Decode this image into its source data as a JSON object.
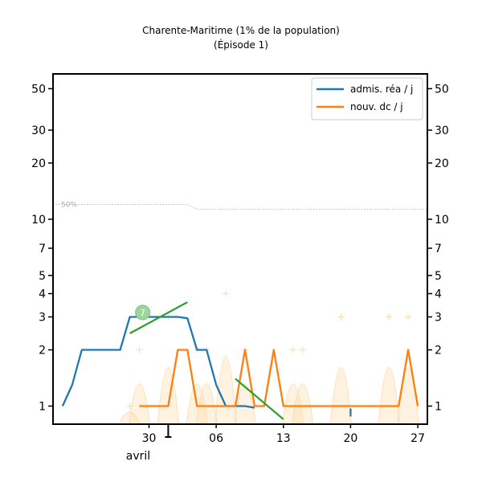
{
  "chart_data": {
    "type": "line",
    "title": "Charente-Maritime (1% de la population)",
    "subtitle": "(Épisode 1)",
    "y_scale": "log",
    "ylim": [
      0.8,
      60
    ],
    "xlim": [
      "2020-03-20",
      "2020-04-28"
    ],
    "y_ticks": [
      1,
      2,
      3,
      4,
      5,
      7,
      10,
      20,
      30,
      50
    ],
    "y_tick_labels": [
      "1",
      "2",
      "3",
      "4",
      "5",
      "7",
      "10",
      "20",
      "30",
      "50"
    ],
    "x_ticks": [
      {
        "date": "2020-03-30",
        "label": "30"
      },
      {
        "date": "2020-04-06",
        "label": "06"
      },
      {
        "date": "2020-04-13",
        "label": "13"
      },
      {
        "date": "2020-04-20",
        "label": "20"
      },
      {
        "date": "2020-04-27",
        "label": "27"
      }
    ],
    "x_month_label": "avril",
    "legend": {
      "position": "top-right",
      "entries": [
        "admis. réa / j",
        "nouv. dc / j"
      ]
    },
    "colors": {
      "rea": "#1f77b4",
      "dc": "#ff7f0e",
      "trend": "#2ca02c",
      "threshold": "#bbbbbb",
      "raw": "#ffd9a8"
    },
    "series": [
      {
        "name": "admis. réa / j",
        "color": "#1f77b4",
        "points": [
          [
            "2020-03-21",
            1.0
          ],
          [
            "2020-03-22",
            1.3
          ],
          [
            "2020-03-23",
            2.0
          ],
          [
            "2020-03-24",
            2.0
          ],
          [
            "2020-03-25",
            2.0
          ],
          [
            "2020-03-26",
            2.0
          ],
          [
            "2020-03-27",
            2.0
          ],
          [
            "2020-03-28",
            3.0
          ],
          [
            "2020-03-29",
            3.0
          ],
          [
            "2020-03-30",
            3.0
          ],
          [
            "2020-03-31",
            3.0
          ],
          [
            "2020-04-01",
            3.0
          ],
          [
            "2020-04-02",
            3.0
          ],
          [
            "2020-04-03",
            2.95
          ],
          [
            "2020-04-04",
            2.0
          ],
          [
            "2020-04-05",
            2.0
          ],
          [
            "2020-04-06",
            1.3
          ],
          [
            "2020-04-07",
            1.0
          ],
          [
            "2020-04-08",
            1.0
          ],
          [
            "2020-04-09",
            1.0
          ],
          [
            "2020-04-10",
            0.98
          ]
        ],
        "extra_segments": [
          [
            [
              "2020-04-20",
              0.97
            ],
            [
              "2020-04-20",
              0.88
            ]
          ]
        ]
      },
      {
        "name": "nouv. dc / j",
        "color": "#ff7f0e",
        "points": [
          [
            "2020-03-29",
            1.0
          ],
          [
            "2020-03-30",
            1.0
          ],
          [
            "2020-03-31",
            1.0
          ],
          [
            "2020-04-01",
            1.0
          ],
          [
            "2020-04-02",
            2.0
          ],
          [
            "2020-04-03",
            2.0
          ],
          [
            "2020-04-04",
            1.0
          ],
          [
            "2020-04-05",
            1.0
          ],
          [
            "2020-04-06",
            1.0
          ],
          [
            "2020-04-07",
            1.0
          ],
          [
            "2020-04-08",
            1.0
          ],
          [
            "2020-04-09",
            2.0
          ],
          [
            "2020-04-10",
            1.0
          ],
          [
            "2020-04-11",
            1.0
          ],
          [
            "2020-04-12",
            2.0
          ],
          [
            "2020-04-13",
            1.0
          ],
          [
            "2020-04-14",
            1.0
          ],
          [
            "2020-04-15",
            1.0
          ],
          [
            "2020-04-16",
            1.0
          ],
          [
            "2020-04-17",
            1.0
          ],
          [
            "2020-04-18",
            1.0
          ],
          [
            "2020-04-19",
            1.0
          ],
          [
            "2020-04-20",
            1.0
          ],
          [
            "2020-04-21",
            1.0
          ],
          [
            "2020-04-22",
            1.0
          ],
          [
            "2020-04-23",
            1.0
          ],
          [
            "2020-04-24",
            1.0
          ],
          [
            "2020-04-25",
            1.0
          ],
          [
            "2020-04-26",
            2.0
          ],
          [
            "2020-04-27",
            1.0
          ]
        ]
      }
    ],
    "raw_points": [
      [
        "2020-03-28",
        1.0
      ],
      [
        "2020-03-29",
        2.0
      ],
      [
        "2020-04-01",
        3.0
      ],
      [
        "2020-04-04",
        2.0
      ],
      [
        "2020-04-05",
        2.0
      ],
      [
        "2020-04-07",
        4.0
      ],
      [
        "2020-04-09",
        2.0
      ],
      [
        "2020-04-14",
        2.0
      ],
      [
        "2020-04-15",
        2.0
      ],
      [
        "2020-04-19",
        3.0
      ],
      [
        "2020-04-24",
        3.0
      ],
      [
        "2020-04-26",
        3.0
      ]
    ],
    "threshold": {
      "label": "50%",
      "points": [
        [
          "2020-03-20",
          12.0
        ],
        [
          "2020-04-03",
          12.0
        ],
        [
          "2020-04-04",
          11.3
        ],
        [
          "2020-04-28",
          11.3
        ]
      ]
    },
    "trend_lines": [
      {
        "start": [
          "2020-03-28",
          2.45
        ],
        "end": [
          "2020-04-03",
          3.6
        ],
        "marker_label": "7"
      },
      {
        "start": [
          "2020-04-08",
          1.4
        ],
        "end": [
          "2020-04-13",
          0.85
        ]
      }
    ]
  }
}
